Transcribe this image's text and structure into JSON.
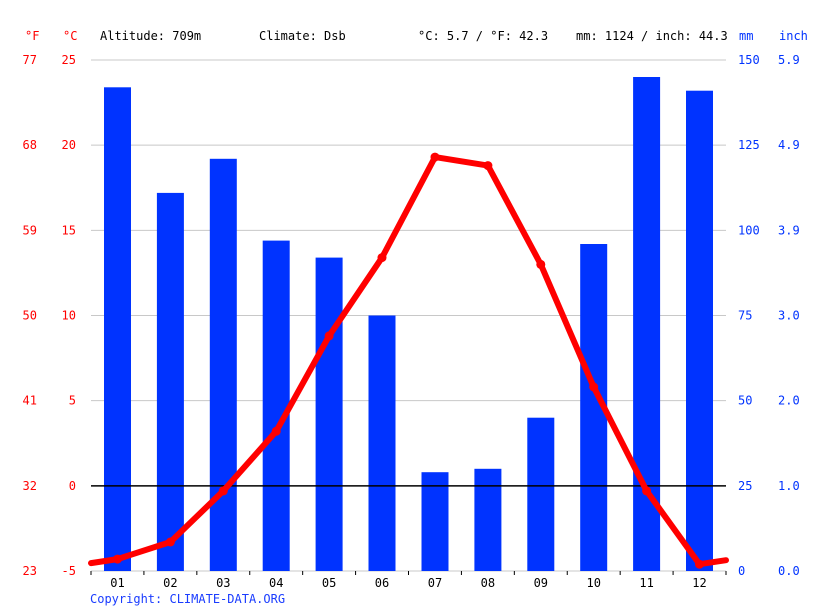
{
  "header": {
    "unit_f": "°F",
    "unit_c": "°C",
    "altitude": "Altitude: 709m",
    "climate": "Climate: Dsb",
    "avg_temp": "°C: 5.7 / °F: 42.3",
    "precip_total": "mm: 1124 / inch: 44.3",
    "unit_mm": "mm",
    "unit_inch": "inch"
  },
  "copyright": "Copyright: CLIMATE-DATA.ORG",
  "colors": {
    "temperature": "#ff0000",
    "precipitation": "#0033ff",
    "axis_text_left": "#ff0000",
    "axis_text_right": "#0033ff",
    "grid": "#c8c8c8",
    "zero_line": "#000000"
  },
  "chart_data": {
    "type": "bar",
    "categories": [
      "01",
      "02",
      "03",
      "04",
      "05",
      "06",
      "07",
      "08",
      "09",
      "10",
      "11",
      "12"
    ],
    "series": [
      {
        "type": "bar",
        "axis": "right",
        "unit": "mm",
        "values": [
          142,
          111,
          121,
          97,
          92,
          75,
          29,
          30,
          45,
          96,
          145,
          141
        ]
      },
      {
        "type": "line",
        "axis": "left",
        "unit": "°C",
        "values": [
          -4.3,
          -3.3,
          -0.3,
          3.2,
          8.8,
          13.4,
          19.3,
          18.8,
          13.0,
          5.8,
          -0.3,
          -4.6
        ]
      }
    ],
    "y_left_celsius": {
      "ticks": [
        "25",
        "20",
        "15",
        "10",
        "5",
        "0",
        "-5"
      ],
      "range": [
        -5,
        25
      ]
    },
    "y_left_fahrenheit": {
      "ticks": [
        "77",
        "68",
        "59",
        "50",
        "41",
        "32",
        "23"
      ]
    },
    "y_right_mm": {
      "ticks": [
        "150",
        "125",
        "100",
        "75",
        "50",
        "25",
        "0"
      ],
      "range": [
        0,
        150
      ]
    },
    "y_right_inch": {
      "ticks": [
        "5.9",
        "4.9",
        "3.9",
        "3.0",
        "2.0",
        "1.0",
        "0.0"
      ]
    },
    "grid": true
  }
}
